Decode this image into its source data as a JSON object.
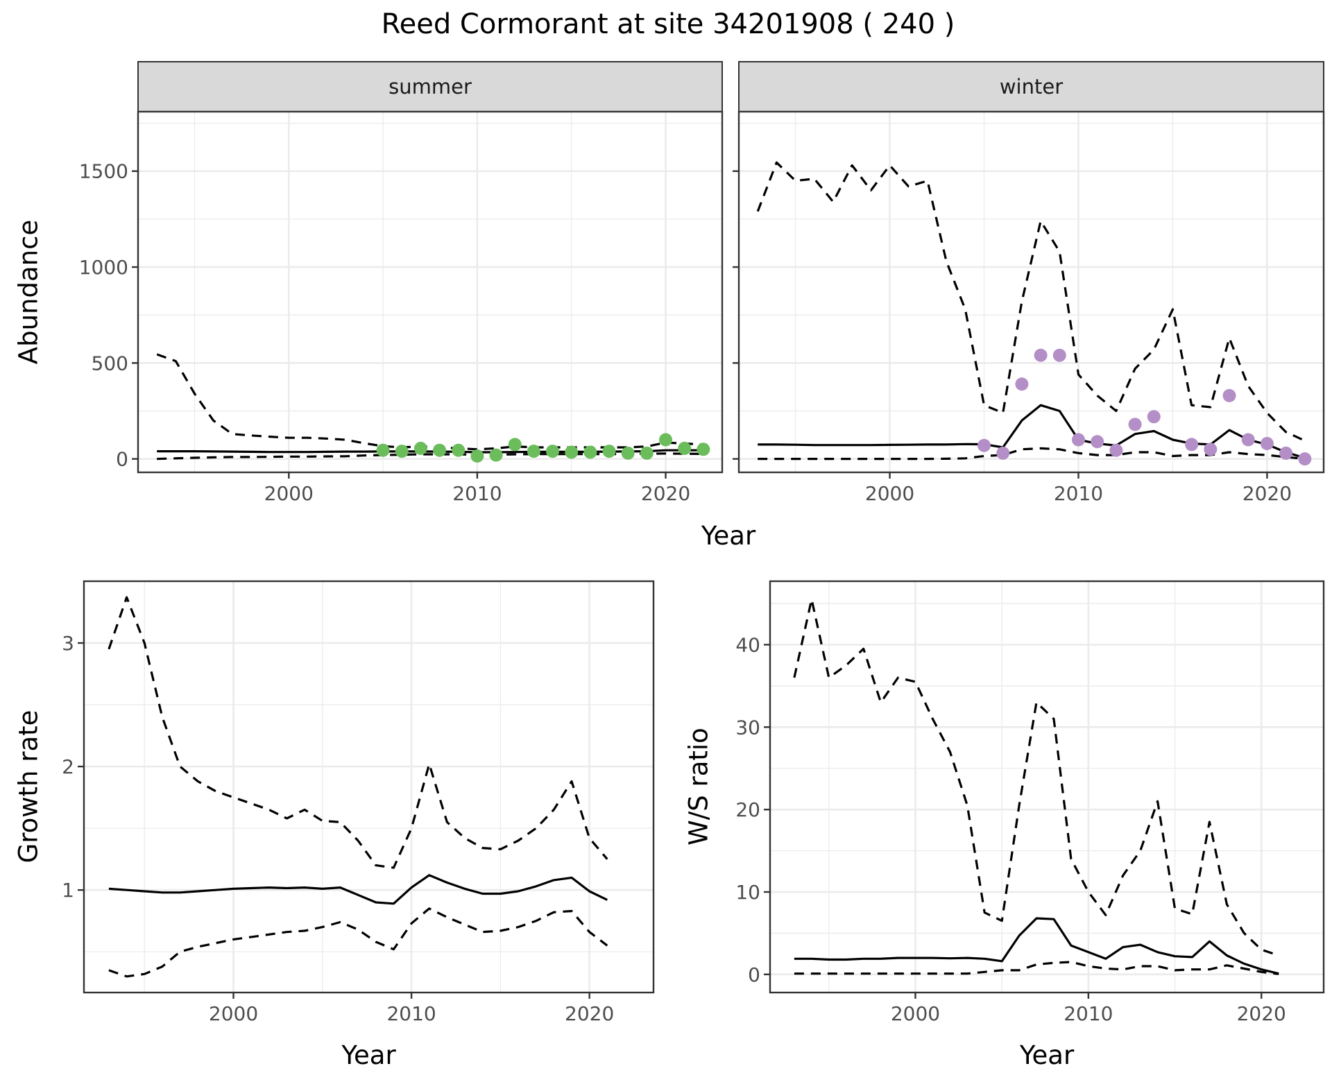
{
  "title": "Reed Cormorant at site 34201908 ( 240 )",
  "colors": {
    "summer_points": "#6BBD5B",
    "winter_points": "#B48EC6",
    "lines": "#000000",
    "strip": "#D9D9D9",
    "grid": "#EBEBEB"
  },
  "chart_data": [
    {
      "type": "line",
      "panel": "summer",
      "strip_label": "summer",
      "xlabel": "Year",
      "ylabel": "Abundance",
      "xlim": [
        1992,
        2023
      ],
      "ylim": [
        -70,
        1810
      ],
      "xticks": [
        2000,
        2010,
        2020
      ],
      "yticks": [
        0,
        500,
        1000,
        1500
      ],
      "xtick_labels": [
        "2000",
        "2010",
        "2020"
      ],
      "ytick_labels": [
        "0",
        "500",
        "1000",
        "1500"
      ],
      "grid": true,
      "x": [
        1993,
        1994,
        1995,
        1996,
        1997,
        1998,
        1999,
        2000,
        2001,
        2002,
        2003,
        2004,
        2005,
        2006,
        2007,
        2008,
        2009,
        2010,
        2011,
        2012,
        2013,
        2014,
        2015,
        2016,
        2017,
        2018,
        2019,
        2020,
        2021,
        2022
      ],
      "series": [
        {
          "style": "solid",
          "values": [
            40,
            40,
            40,
            39,
            38,
            37,
            36,
            36,
            36,
            37,
            38,
            38,
            39,
            39,
            39,
            38,
            37,
            35,
            35,
            36,
            37,
            37,
            37,
            37,
            38,
            39,
            40,
            45,
            45,
            45
          ]
        },
        {
          "style": "dashed",
          "values": [
            545,
            510,
            340,
            200,
            130,
            122,
            116,
            110,
            110,
            106,
            100,
            82,
            66,
            60,
            65,
            60,
            55,
            50,
            55,
            65,
            60,
            60,
            60,
            60,
            60,
            60,
            65,
            85,
            80,
            75
          ]
        },
        {
          "style": "dashed",
          "values": [
            0,
            3,
            6,
            8,
            10,
            10,
            11,
            12,
            12,
            13,
            14,
            18,
            20,
            22,
            24,
            24,
            24,
            22,
            22,
            24,
            25,
            25,
            25,
            25,
            25,
            26,
            27,
            28,
            27,
            26
          ]
        }
      ],
      "points": {
        "x": [
          2005,
          2006,
          2007,
          2008,
          2009,
          2010,
          2011,
          2012,
          2013,
          2014,
          2015,
          2016,
          2017,
          2018,
          2019,
          2020,
          2021,
          2022
        ],
        "values": [
          45,
          40,
          55,
          45,
          45,
          15,
          20,
          75,
          40,
          40,
          35,
          35,
          40,
          30,
          30,
          100,
          55,
          50
        ]
      }
    },
    {
      "type": "line",
      "panel": "winter",
      "strip_label": "winter",
      "xlabel": "Year",
      "xlim": [
        1992,
        2023
      ],
      "ylim": [
        -70,
        1810
      ],
      "xticks": [
        2000,
        2010,
        2020
      ],
      "yticks": [
        0,
        500,
        1000,
        1500
      ],
      "xtick_labels": [
        "2000",
        "2010",
        "2020"
      ],
      "grid": true,
      "x": [
        1993,
        1994,
        1995,
        1996,
        1997,
        1998,
        1999,
        2000,
        2001,
        2002,
        2003,
        2004,
        2005,
        2006,
        2007,
        2008,
        2009,
        2010,
        2011,
        2012,
        2013,
        2014,
        2015,
        2016,
        2017,
        2018,
        2019,
        2020,
        2021,
        2022
      ],
      "series": [
        {
          "style": "solid",
          "values": [
            75,
            75,
            74,
            72,
            72,
            72,
            72,
            73,
            74,
            75,
            75,
            77,
            76,
            60,
            200,
            280,
            250,
            100,
            80,
            70,
            130,
            145,
            100,
            80,
            75,
            150,
            100,
            75,
            35,
            5
          ]
        },
        {
          "style": "dashed",
          "values": [
            1290,
            1545,
            1450,
            1460,
            1340,
            1530,
            1400,
            1530,
            1420,
            1450,
            1030,
            780,
            280,
            240,
            820,
            1240,
            1080,
            440,
            330,
            250,
            470,
            570,
            780,
            280,
            270,
            630,
            380,
            240,
            140,
            95
          ]
        },
        {
          "style": "dashed",
          "values": [
            0,
            0,
            0,
            0,
            0,
            0,
            0,
            0,
            0,
            0,
            1,
            3,
            15,
            20,
            50,
            55,
            50,
            30,
            20,
            20,
            35,
            35,
            15,
            20,
            20,
            35,
            25,
            20,
            10,
            0
          ]
        }
      ],
      "points": {
        "x": [
          2005,
          2006,
          2007,
          2008,
          2009,
          2010,
          2011,
          2012,
          2013,
          2014,
          2016,
          2017,
          2018,
          2019,
          2020,
          2021,
          2022
        ],
        "values": [
          70,
          30,
          390,
          540,
          540,
          100,
          90,
          45,
          180,
          220,
          75,
          50,
          330,
          100,
          80,
          30,
          0
        ]
      }
    },
    {
      "type": "line",
      "panel": "growth",
      "xlabel": "Year",
      "ylabel": "Growth rate",
      "xlim": [
        1991.6,
        2023.6
      ],
      "ylim": [
        0.17,
        3.5
      ],
      "xticks": [
        2000,
        2010,
        2020
      ],
      "yticks": [
        1,
        2,
        3
      ],
      "xtick_labels": [
        "2000",
        "2010",
        "2020"
      ],
      "ytick_labels": [
        "1",
        "2",
        "3"
      ],
      "grid": true,
      "x": [
        1993,
        1994,
        1995,
        1996,
        1997,
        1998,
        1999,
        2000,
        2001,
        2002,
        2003,
        2004,
        2005,
        2006,
        2007,
        2008,
        2009,
        2010,
        2011,
        2012,
        2013,
        2014,
        2015,
        2016,
        2017,
        2018,
        2019,
        2020,
        2021
      ],
      "series": [
        {
          "style": "solid",
          "values": [
            1.01,
            1.0,
            0.99,
            0.98,
            0.98,
            0.99,
            1.0,
            1.01,
            1.015,
            1.02,
            1.015,
            1.02,
            1.01,
            1.02,
            0.96,
            0.9,
            0.89,
            1.02,
            1.12,
            1.06,
            1.01,
            0.97,
            0.97,
            0.99,
            1.03,
            1.08,
            1.1,
            0.99,
            0.92
          ]
        },
        {
          "style": "dashed",
          "values": [
            2.95,
            3.37,
            3.0,
            2.4,
            2.0,
            1.88,
            1.8,
            1.75,
            1.7,
            1.65,
            1.58,
            1.65,
            1.56,
            1.55,
            1.4,
            1.2,
            1.18,
            1.5,
            2.02,
            1.55,
            1.42,
            1.34,
            1.33,
            1.4,
            1.5,
            1.65,
            1.88,
            1.42,
            1.25
          ]
        },
        {
          "style": "dashed",
          "values": [
            0.35,
            0.3,
            0.32,
            0.38,
            0.5,
            0.54,
            0.57,
            0.6,
            0.62,
            0.64,
            0.66,
            0.67,
            0.7,
            0.74,
            0.68,
            0.58,
            0.52,
            0.73,
            0.85,
            0.78,
            0.72,
            0.66,
            0.67,
            0.7,
            0.75,
            0.82,
            0.83,
            0.66,
            0.55
          ]
        }
      ]
    },
    {
      "type": "line",
      "panel": "ws",
      "xlabel": "Year",
      "ylabel": "W/S ratio",
      "xlim": [
        1991.6,
        2023.6
      ],
      "ylim": [
        -2.2,
        47.7
      ],
      "xticks": [
        2000,
        2010,
        2020
      ],
      "yticks": [
        0,
        10,
        20,
        30,
        40
      ],
      "xtick_labels": [
        "2000",
        "2010",
        "2020"
      ],
      "ytick_labels": [
        "0",
        "10",
        "20",
        "30",
        "40"
      ],
      "grid": true,
      "x": [
        1993,
        1994,
        1995,
        1996,
        1997,
        1998,
        1999,
        2000,
        2001,
        2002,
        2003,
        2004,
        2005,
        2006,
        2007,
        2008,
        2009,
        2010,
        2011,
        2012,
        2013,
        2014,
        2015,
        2016,
        2017,
        2018,
        2019,
        2020,
        2021
      ],
      "series": [
        {
          "style": "solid",
          "values": [
            1.9,
            1.9,
            1.8,
            1.8,
            1.9,
            1.9,
            2.0,
            2.0,
            2.0,
            1.95,
            2.0,
            1.9,
            1.6,
            4.7,
            6.8,
            6.7,
            3.5,
            2.7,
            1.9,
            3.3,
            3.6,
            2.7,
            2.2,
            2.1,
            4.0,
            2.3,
            1.3,
            0.6,
            0.1
          ]
        },
        {
          "style": "dashed",
          "values": [
            36,
            45.5,
            36,
            37.5,
            39.5,
            33,
            36,
            35.5,
            31,
            27,
            20.5,
            7.5,
            6.5,
            20.5,
            33,
            31,
            14,
            10,
            7.2,
            12,
            15,
            21,
            8,
            7.3,
            18.5,
            8.5,
            5,
            3,
            2.3
          ]
        },
        {
          "style": "dashed",
          "values": [
            0.1,
            0.1,
            0.1,
            0.1,
            0.1,
            0.1,
            0.1,
            0.1,
            0.1,
            0.1,
            0.1,
            0.3,
            0.5,
            0.5,
            1.2,
            1.4,
            1.5,
            1.0,
            0.7,
            0.6,
            1.0,
            1.0,
            0.5,
            0.6,
            0.6,
            1.1,
            0.7,
            0.3,
            0.05
          ]
        }
      ]
    }
  ]
}
